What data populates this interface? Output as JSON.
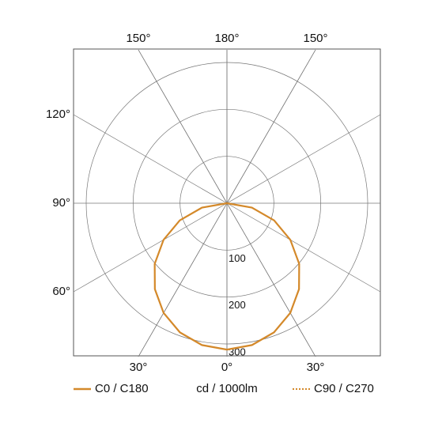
{
  "chart_data": {
    "type": "polar",
    "unit_label": "cd / 1000lm",
    "angle_ticks": [
      {
        "value": -150,
        "label": "150°"
      },
      {
        "value": 180,
        "label": "180°"
      },
      {
        "value": 150,
        "label": "150°"
      },
      {
        "value": -120,
        "label": "120°"
      },
      {
        "value": -90,
        "label": "90°"
      },
      {
        "value": -60,
        "label": "60°"
      },
      {
        "value": -30,
        "label": "30°"
      },
      {
        "value": 0,
        "label": "0°"
      },
      {
        "value": 30,
        "label": "30°"
      }
    ],
    "rticks": [
      100,
      200,
      300
    ],
    "angles": [
      0,
      10,
      20,
      30,
      40,
      50,
      60,
      70,
      80,
      90
    ],
    "series": [
      {
        "name": "C0 / C180",
        "color": "#d4892a",
        "style": "solid",
        "values": [
          312,
          307,
          293,
          270,
          239,
          201,
          156,
          107,
          54,
          0
        ]
      },
      {
        "name": "C90 / C270",
        "color": "#d4892a",
        "style": "dotted",
        "values": [
          312,
          307,
          293,
          270,
          239,
          201,
          156,
          107,
          54,
          0
        ]
      }
    ]
  }
}
